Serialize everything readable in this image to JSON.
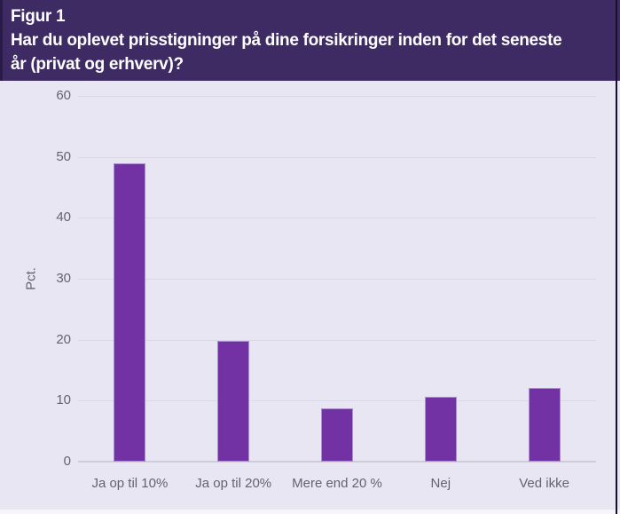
{
  "header": {
    "lines": [
      "Figur 1",
      "Har du oplevet prisstigninger på dine forsikringer inden for det seneste",
      "år (privat og erhverv)?"
    ]
  },
  "chart_data": {
    "type": "bar",
    "figure_label": "Figur 1",
    "title": "Har du oplevet prisstigninger på dine forsikringer inden for det seneste år (privat og erhverv)?",
    "categories": [
      "Ja op til 10%",
      "Ja op til 20%",
      "Mere end 20 %",
      "Nej",
      "Ved ikke"
    ],
    "values": [
      48.9,
      19.8,
      8.7,
      10.6,
      12.1
    ],
    "xlabel": "",
    "ylabel": "Pct.",
    "ylim": [
      0,
      60
    ],
    "yticks": [
      0,
      10,
      20,
      30,
      40,
      50,
      60
    ],
    "grid": true,
    "legend": false
  },
  "colors": {
    "header_bg": "#3e2b64",
    "header_text": "#ffffff",
    "bar_fill": "#7232a4",
    "bar_border": "#a98fd0",
    "background": "#e9e6f3",
    "gridline": "#dcd8e7",
    "axis_line": "#cfcbdb",
    "tick_text": "#63636f",
    "window_border": "#17102a"
  }
}
